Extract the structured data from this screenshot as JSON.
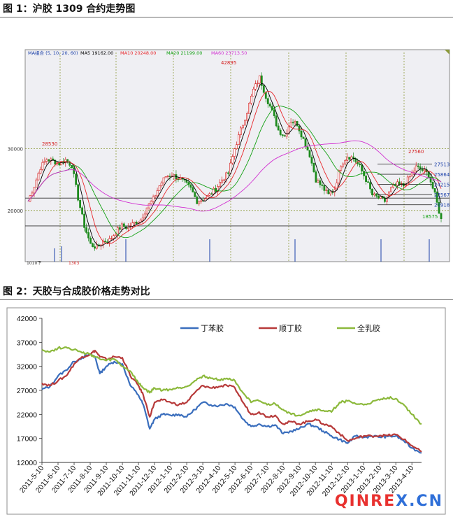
{
  "figure1": {
    "caption": "图 1：沪胶 1309 合约走势图",
    "indicator_label": "MA组合 (5, 10, 20, 60)",
    "ma_readouts": [
      {
        "label": "MA5 19162.00",
        "color": "#000000"
      },
      {
        "label": "MA10 20248.00",
        "color": "#e8272b"
      },
      {
        "label": "MA20 21199.00",
        "color": "#12a012"
      },
      {
        "label": "MA60 23713.50",
        "color": "#d12fd1"
      }
    ]
  },
  "figure2": {
    "caption": "图 2：天胶与合成胶价格走势对比"
  },
  "watermark": {
    "text": "QINREX.CN",
    "colors": [
      "#e8312f",
      "#2f6fd8"
    ]
  },
  "chart_data": [
    {
      "type": "candlestick",
      "title": "",
      "ylim": [
        15000,
        45000
      ],
      "y_tick_labels": [
        "30000",
        "20000"
      ],
      "y_ticks": [
        30000,
        20000
      ],
      "bottom_left_fragment": "1010下",
      "bottom_mid_fragment": "1303",
      "horizontal_levels": [
        {
          "value": 27513,
          "label": "27513"
        },
        {
          "value": 25864,
          "label": "25864"
        },
        {
          "value": 24215,
          "label": "24215"
        },
        {
          "value": 22567,
          "label": "22567"
        },
        {
          "value": 20918,
          "label": "20918"
        },
        {
          "value": 22000,
          "label": ""
        },
        {
          "value": 17500,
          "label": ""
        }
      ],
      "annotations": [
        {
          "label": "28530",
          "value": 28530
        },
        {
          "label": "42895",
          "value": 42895
        },
        {
          "label": "27560",
          "value": 27560
        },
        {
          "label": "18575",
          "value": 18575
        }
      ],
      "close_path": [
        [
          0,
          21500
        ],
        [
          3,
          24000
        ],
        [
          6,
          27000
        ],
        [
          9,
          28300
        ],
        [
          12,
          28000
        ],
        [
          15,
          27600
        ],
        [
          18,
          28200
        ],
        [
          21,
          27300
        ],
        [
          24,
          22000
        ],
        [
          27,
          17500
        ],
        [
          30,
          14500
        ],
        [
          33,
          14000
        ],
        [
          36,
          15000
        ],
        [
          39,
          15200
        ],
        [
          42,
          16500
        ],
        [
          45,
          17500
        ],
        [
          48,
          17200
        ],
        [
          51,
          18000
        ],
        [
          54,
          18500
        ],
        [
          57,
          20500
        ],
        [
          60,
          21800
        ],
        [
          63,
          24000
        ],
        [
          66,
          25500
        ],
        [
          69,
          25800
        ],
        [
          72,
          25200
        ],
        [
          75,
          24500
        ],
        [
          78,
          23500
        ],
        [
          81,
          21500
        ],
        [
          84,
          21800
        ],
        [
          87,
          22500
        ],
        [
          90,
          23500
        ],
        [
          93,
          25000
        ],
        [
          96,
          26000
        ],
        [
          99,
          30000
        ],
        [
          102,
          33000
        ],
        [
          105,
          36000
        ],
        [
          108,
          39500
        ],
        [
          111,
          41500
        ],
        [
          114,
          38500
        ],
        [
          117,
          36000
        ],
        [
          120,
          33000
        ],
        [
          123,
          32000
        ],
        [
          126,
          34500
        ],
        [
          129,
          34000
        ],
        [
          132,
          31500
        ],
        [
          135,
          29000
        ],
        [
          138,
          25000
        ],
        [
          141,
          23800
        ],
        [
          144,
          22500
        ],
        [
          147,
          23500
        ],
        [
          150,
          27500
        ],
        [
          153,
          28800
        ],
        [
          156,
          28500
        ],
        [
          159,
          27000
        ],
        [
          162,
          25000
        ],
        [
          165,
          22500
        ],
        [
          168,
          22000
        ],
        [
          171,
          21500
        ],
        [
          174,
          23500
        ],
        [
          177,
          24200
        ],
        [
          180,
          24000
        ],
        [
          183,
          25500
        ],
        [
          186,
          27000
        ],
        [
          189,
          26500
        ],
        [
          192,
          25800
        ],
        [
          195,
          22500
        ],
        [
          198,
          18500
        ]
      ],
      "x_count": 200,
      "series": [
        {
          "name": "MA5",
          "color": "#000000"
        },
        {
          "name": "MA10",
          "color": "#e8272b"
        },
        {
          "name": "MA20",
          "color": "#12a012"
        },
        {
          "name": "MA60",
          "color": "#d12fd1"
        }
      ]
    },
    {
      "type": "line",
      "title": "",
      "ylim": [
        12000,
        42000
      ],
      "y_ticks": [
        12000,
        17000,
        22000,
        27000,
        32000,
        37000,
        42000
      ],
      "x_labels": [
        "2011-5-10",
        "2011-6-10",
        "2011-7-10",
        "2011-8-10",
        "2011-9-10",
        "2011-10-10",
        "2011-11-10",
        "2011-12-10",
        "2012-1-10",
        "2012-2-10",
        "2012-3-10",
        "2012-4-10",
        "2012-5-10",
        "2012-6-10",
        "2012-7-10",
        "2012-8-10",
        "2012-9-10",
        "2012-10-10",
        "2012-11-10",
        "2012-12-10",
        "2013-1-10",
        "2013-2-10",
        "2013-3-10",
        "2013-4-10"
      ],
      "x_range": [
        0,
        23.6
      ],
      "legend_position": "top",
      "series": [
        {
          "name": "丁苯胶",
          "color": "#3a6ebd",
          "points": [
            [
              0,
              27200
            ],
            [
              0.5,
              27800
            ],
            [
              1,
              30000
            ],
            [
              1.5,
              31200
            ],
            [
              2,
              33000
            ],
            [
              2.5,
              33800
            ],
            [
              3,
              34500
            ],
            [
              3.3,
              34000
            ],
            [
              3.6,
              30500
            ],
            [
              4,
              32000
            ],
            [
              4.5,
              33000
            ],
            [
              5,
              32500
            ],
            [
              5.5,
              28000
            ],
            [
              6,
              26000
            ],
            [
              6.3,
              24000
            ],
            [
              6.7,
              19000
            ],
            [
              7,
              21000
            ],
            [
              7.5,
              22000
            ],
            [
              8,
              21800
            ],
            [
              8.5,
              22000
            ],
            [
              9,
              21500
            ],
            [
              9.5,
              23000
            ],
            [
              10,
              24500
            ],
            [
              10.5,
              24000
            ],
            [
              11,
              23800
            ],
            [
              11.5,
              24200
            ],
            [
              12,
              23500
            ],
            [
              12.5,
              21000
            ],
            [
              13,
              19500
            ],
            [
              13.5,
              20000
            ],
            [
              14,
              19500
            ],
            [
              14.5,
              19800
            ],
            [
              15,
              18000
            ],
            [
              15.5,
              18500
            ],
            [
              16,
              19000
            ],
            [
              16.5,
              20000
            ],
            [
              17,
              19500
            ],
            [
              17.5,
              18500
            ],
            [
              18,
              17500
            ],
            [
              18.5,
              16800
            ],
            [
              19,
              16000
            ],
            [
              19.5,
              17500
            ],
            [
              20,
              17200
            ],
            [
              20.5,
              17500
            ],
            [
              21,
              17300
            ],
            [
              21.5,
              17400
            ],
            [
              22,
              17500
            ],
            [
              22.5,
              16500
            ],
            [
              23,
              15000
            ],
            [
              23.6,
              14000
            ]
          ]
        },
        {
          "name": "顺丁胶",
          "color": "#b73a3a",
          "points": [
            [
              0,
              28500
            ],
            [
              0.5,
              28000
            ],
            [
              1,
              29000
            ],
            [
              1.5,
              30000
            ],
            [
              2,
              32500
            ],
            [
              2.5,
              34000
            ],
            [
              3,
              34500
            ],
            [
              3.3,
              35300
            ],
            [
              3.6,
              34000
            ],
            [
              4,
              33500
            ],
            [
              4.5,
              34000
            ],
            [
              5,
              33800
            ],
            [
              5.5,
              30000
            ],
            [
              6,
              28000
            ],
            [
              6.3,
              26000
            ],
            [
              6.7,
              21500
            ],
            [
              7,
              24500
            ],
            [
              7.5,
              25000
            ],
            [
              8,
              24500
            ],
            [
              8.5,
              24000
            ],
            [
              9,
              24500
            ],
            [
              9.5,
              26500
            ],
            [
              10,
              28000
            ],
            [
              10.5,
              27500
            ],
            [
              11,
              27800
            ],
            [
              11.5,
              28000
            ],
            [
              12,
              27500
            ],
            [
              12.5,
              24500
            ],
            [
              13,
              22000
            ],
            [
              13.5,
              22500
            ],
            [
              14,
              21500
            ],
            [
              14.5,
              21800
            ],
            [
              15,
              20000
            ],
            [
              15.5,
              20500
            ],
            [
              16,
              20000
            ],
            [
              16.5,
              20500
            ],
            [
              17,
              21000
            ],
            [
              17.5,
              20000
            ],
            [
              18,
              19500
            ],
            [
              18.5,
              18000
            ],
            [
              19,
              16500
            ],
            [
              19.5,
              17000
            ],
            [
              20,
              17500
            ],
            [
              20.5,
              17500
            ],
            [
              21,
              17600
            ],
            [
              21.5,
              17600
            ],
            [
              22,
              17800
            ],
            [
              22.5,
              16800
            ],
            [
              23,
              15500
            ],
            [
              23.6,
              14200
            ]
          ]
        },
        {
          "name": "全乳胶",
          "color": "#8cb93c",
          "points": [
            [
              0,
              35500
            ],
            [
              0.5,
              35000
            ],
            [
              1,
              35800
            ],
            [
              1.5,
              36000
            ],
            [
              2,
              35500
            ],
            [
              2.5,
              34800
            ],
            [
              3,
              34500
            ],
            [
              3.3,
              34000
            ],
            [
              3.6,
              33500
            ],
            [
              4,
              33200
            ],
            [
              4.5,
              33500
            ],
            [
              5,
              32000
            ],
            [
              5.5,
              31000
            ],
            [
              6,
              28500
            ],
            [
              6.3,
              27500
            ],
            [
              6.7,
              26500
            ],
            [
              7,
              27500
            ],
            [
              7.5,
              27000
            ],
            [
              8,
              27200
            ],
            [
              8.5,
              27500
            ],
            [
              9,
              27800
            ],
            [
              9.5,
              29000
            ],
            [
              10,
              30000
            ],
            [
              10.5,
              29500
            ],
            [
              11,
              29200
            ],
            [
              11.5,
              29500
            ],
            [
              12,
              29000
            ],
            [
              12.5,
              26500
            ],
            [
              13,
              24500
            ],
            [
              13.5,
              24800
            ],
            [
              14,
              24000
            ],
            [
              14.5,
              24200
            ],
            [
              15,
              23000
            ],
            [
              15.5,
              22000
            ],
            [
              16,
              21800
            ],
            [
              16.5,
              22500
            ],
            [
              17,
              23000
            ],
            [
              17.5,
              22800
            ],
            [
              18,
              22500
            ],
            [
              18.5,
              24500
            ],
            [
              19,
              24800
            ],
            [
              19.5,
              24200
            ],
            [
              20,
              24000
            ],
            [
              20.5,
              24500
            ],
            [
              21,
              25000
            ],
            [
              21.5,
              25500
            ],
            [
              22,
              25300
            ],
            [
              22.5,
              24000
            ],
            [
              23,
              22000
            ],
            [
              23.6,
              20000
            ]
          ]
        }
      ]
    }
  ]
}
